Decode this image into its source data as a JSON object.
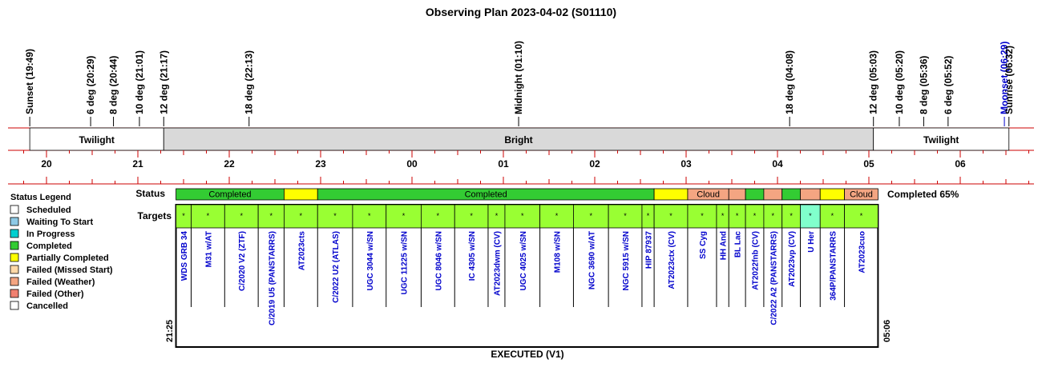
{
  "chart_data": {
    "type": "timeline",
    "title": "Observing Plan 2023-04-02 (S01110)",
    "footer": "EXECUTED (V1)",
    "start_label": "21:25",
    "end_label": "05:06",
    "completion_label": "Completed 65%",
    "row_labels": {
      "status": "Status",
      "targets": "Targets"
    },
    "x_range_hours": [
      19.6,
      30.7
    ],
    "hour_ticks": [
      {
        "t": 20,
        "label": "20"
      },
      {
        "t": 21,
        "label": "21"
      },
      {
        "t": 22,
        "label": "22"
      },
      {
        "t": 23,
        "label": "23"
      },
      {
        "t": 24,
        "label": "00"
      },
      {
        "t": 25,
        "label": "01"
      },
      {
        "t": 26,
        "label": "02"
      },
      {
        "t": 27,
        "label": "03"
      },
      {
        "t": 28,
        "label": "04"
      },
      {
        "t": 29,
        "label": "05"
      },
      {
        "t": 30,
        "label": "06"
      }
    ],
    "events": [
      {
        "t": 19.817,
        "label": "Sunset (19:49)",
        "color": "#000000"
      },
      {
        "t": 20.483,
        "label": "6 deg (20:29)",
        "color": "#000000"
      },
      {
        "t": 20.733,
        "label": "8 deg (20:44)",
        "color": "#000000"
      },
      {
        "t": 21.017,
        "label": "10 deg (21:01)",
        "color": "#000000"
      },
      {
        "t": 21.283,
        "label": "12 deg (21:17)",
        "color": "#000000"
      },
      {
        "t": 22.217,
        "label": "18 deg (22:13)",
        "color": "#000000"
      },
      {
        "t": 25.167,
        "label": "Midnight (01:10)",
        "color": "#000000"
      },
      {
        "t": 28.133,
        "label": "18 deg (04:08)",
        "color": "#000000"
      },
      {
        "t": 29.05,
        "label": "12 deg (05:03)",
        "color": "#000000"
      },
      {
        "t": 29.333,
        "label": "10 deg (05:20)",
        "color": "#000000"
      },
      {
        "t": 29.6,
        "label": "8 deg (05:36)",
        "color": "#000000"
      },
      {
        "t": 29.867,
        "label": "6 deg (05:52)",
        "color": "#000000"
      },
      {
        "t": 30.483,
        "label": "Moonset (06:29)",
        "color": "#0000cc"
      },
      {
        "t": 30.533,
        "label": "Sunrise (06:32)",
        "color": "#000000"
      }
    ],
    "periods": [
      {
        "t0": 19.817,
        "t1": 21.283,
        "label": "Twilight",
        "fill": "#ffffff"
      },
      {
        "t0": 21.283,
        "t1": 29.05,
        "label": "Bright",
        "fill": "#d9d9d9"
      },
      {
        "t0": 29.05,
        "t1": 30.533,
        "label": "Twilight",
        "fill": "#ffffff"
      }
    ],
    "status_segments": [
      {
        "t0": 21.417,
        "t1": 22.6,
        "status": "completed",
        "label": "Completed"
      },
      {
        "t0": 22.6,
        "t1": 22.967,
        "status": "partial",
        "label": ""
      },
      {
        "t0": 22.967,
        "t1": 26.65,
        "status": "completed",
        "label": "Completed"
      },
      {
        "t0": 26.65,
        "t1": 27.017,
        "status": "partial",
        "label": ""
      },
      {
        "t0": 27.017,
        "t1": 27.467,
        "status": "weather",
        "label": "Cloud"
      },
      {
        "t0": 27.467,
        "t1": 27.65,
        "status": "weather",
        "label": ""
      },
      {
        "t0": 27.65,
        "t1": 27.85,
        "status": "completed",
        "label": ""
      },
      {
        "t0": 27.85,
        "t1": 28.05,
        "status": "weather",
        "label": ""
      },
      {
        "t0": 28.05,
        "t1": 28.25,
        "status": "completed",
        "label": ""
      },
      {
        "t0": 28.25,
        "t1": 28.467,
        "status": "weather",
        "label": ""
      },
      {
        "t0": 28.467,
        "t1": 28.733,
        "status": "partial",
        "label": ""
      },
      {
        "t0": 28.733,
        "t1": 29.1,
        "status": "weather",
        "label": "Cloud"
      }
    ],
    "targets": [
      {
        "name": "WDS GRB 34",
        "t0": 21.417,
        "t1": 21.583,
        "state": "done"
      },
      {
        "name": "M31 w/AT",
        "t0": 21.583,
        "t1": 21.95,
        "state": "done"
      },
      {
        "name": "C/2020 V2 (ZTF)",
        "t0": 21.95,
        "t1": 22.317,
        "state": "done"
      },
      {
        "name": "C/2019 U5 (PANSTARRS)",
        "t0": 22.317,
        "t1": 22.6,
        "state": "done"
      },
      {
        "name": "AT2023cts",
        "t0": 22.6,
        "t1": 22.967,
        "state": "done"
      },
      {
        "name": "C/2022 U2 (ATLAS)",
        "t0": 22.967,
        "t1": 23.35,
        "state": "done"
      },
      {
        "name": "UGC 3044 w/SN",
        "t0": 23.35,
        "t1": 23.717,
        "state": "done"
      },
      {
        "name": "UGC 11225 w/SN",
        "t0": 23.717,
        "t1": 24.1,
        "state": "done"
      },
      {
        "name": "UGC 8046 w/SN",
        "t0": 24.1,
        "t1": 24.467,
        "state": "done"
      },
      {
        "name": "IC 4305 w/SN",
        "t0": 24.467,
        "t1": 24.833,
        "state": "done"
      },
      {
        "name": "AT2023dwm (CV)",
        "t0": 24.833,
        "t1": 25.017,
        "state": "done"
      },
      {
        "name": "UGC 4025 w/SN",
        "t0": 25.017,
        "t1": 25.4,
        "state": "done"
      },
      {
        "name": "M108 w/SN",
        "t0": 25.4,
        "t1": 25.767,
        "state": "done"
      },
      {
        "name": "NGC 3690 w/AT",
        "t0": 25.767,
        "t1": 26.15,
        "state": "done"
      },
      {
        "name": "NGC 5915 w/SN",
        "t0": 26.15,
        "t1": 26.517,
        "state": "done"
      },
      {
        "name": "HIP 87937",
        "t0": 26.517,
        "t1": 26.65,
        "state": "done"
      },
      {
        "name": "AT2023ctx (CV)",
        "t0": 26.65,
        "t1": 27.017,
        "state": "done"
      },
      {
        "name": "SS Cyg",
        "t0": 27.017,
        "t1": 27.333,
        "state": "done"
      },
      {
        "name": "HH And",
        "t0": 27.333,
        "t1": 27.467,
        "state": "done"
      },
      {
        "name": "BL Lac",
        "t0": 27.467,
        "t1": 27.65,
        "state": "done"
      },
      {
        "name": "AT2022fnb (CV)",
        "t0": 27.65,
        "t1": 27.85,
        "state": "done"
      },
      {
        "name": "C/2022 A2 (PANSTARRS)",
        "t0": 27.85,
        "t1": 28.05,
        "state": "done"
      },
      {
        "name": "AT2023vp (CV)",
        "t0": 28.05,
        "t1": 28.25,
        "state": "done"
      },
      {
        "name": "U Her",
        "t0": 28.25,
        "t1": 28.467,
        "state": "skip"
      },
      {
        "name": "364P/PANSTARRS",
        "t0": 28.467,
        "t1": 28.733,
        "state": "done"
      },
      {
        "name": "AT2023cuo",
        "t0": 28.733,
        "t1": 29.1,
        "state": "done"
      }
    ],
    "target_marker": "*",
    "legend": {
      "title": "Status Legend",
      "items": [
        {
          "label": "Scheduled",
          "color": "#ffffff"
        },
        {
          "label": "Waiting To Start",
          "color": "#8ecae6"
        },
        {
          "label": "In Progress",
          "color": "#00d0d0"
        },
        {
          "label": "Completed",
          "color": "#33cc33"
        },
        {
          "label": "Partially Completed",
          "color": "#ffff00"
        },
        {
          "label": "Failed (Missed Start)",
          "color": "#ffd9a8"
        },
        {
          "label": "Failed (Weather)",
          "color": "#f4a582"
        },
        {
          "label": "Failed (Other)",
          "color": "#f08070"
        },
        {
          "label": "Cancelled",
          "color": "#ffffff"
        }
      ]
    },
    "colors": {
      "completed": "#33cc33",
      "partial": "#ffff00",
      "weather": "#f4a582",
      "target_done": "#99ff33",
      "target_skip": "#80ffcc",
      "axis": "#cc0000",
      "target_text": "#0000cc"
    }
  }
}
